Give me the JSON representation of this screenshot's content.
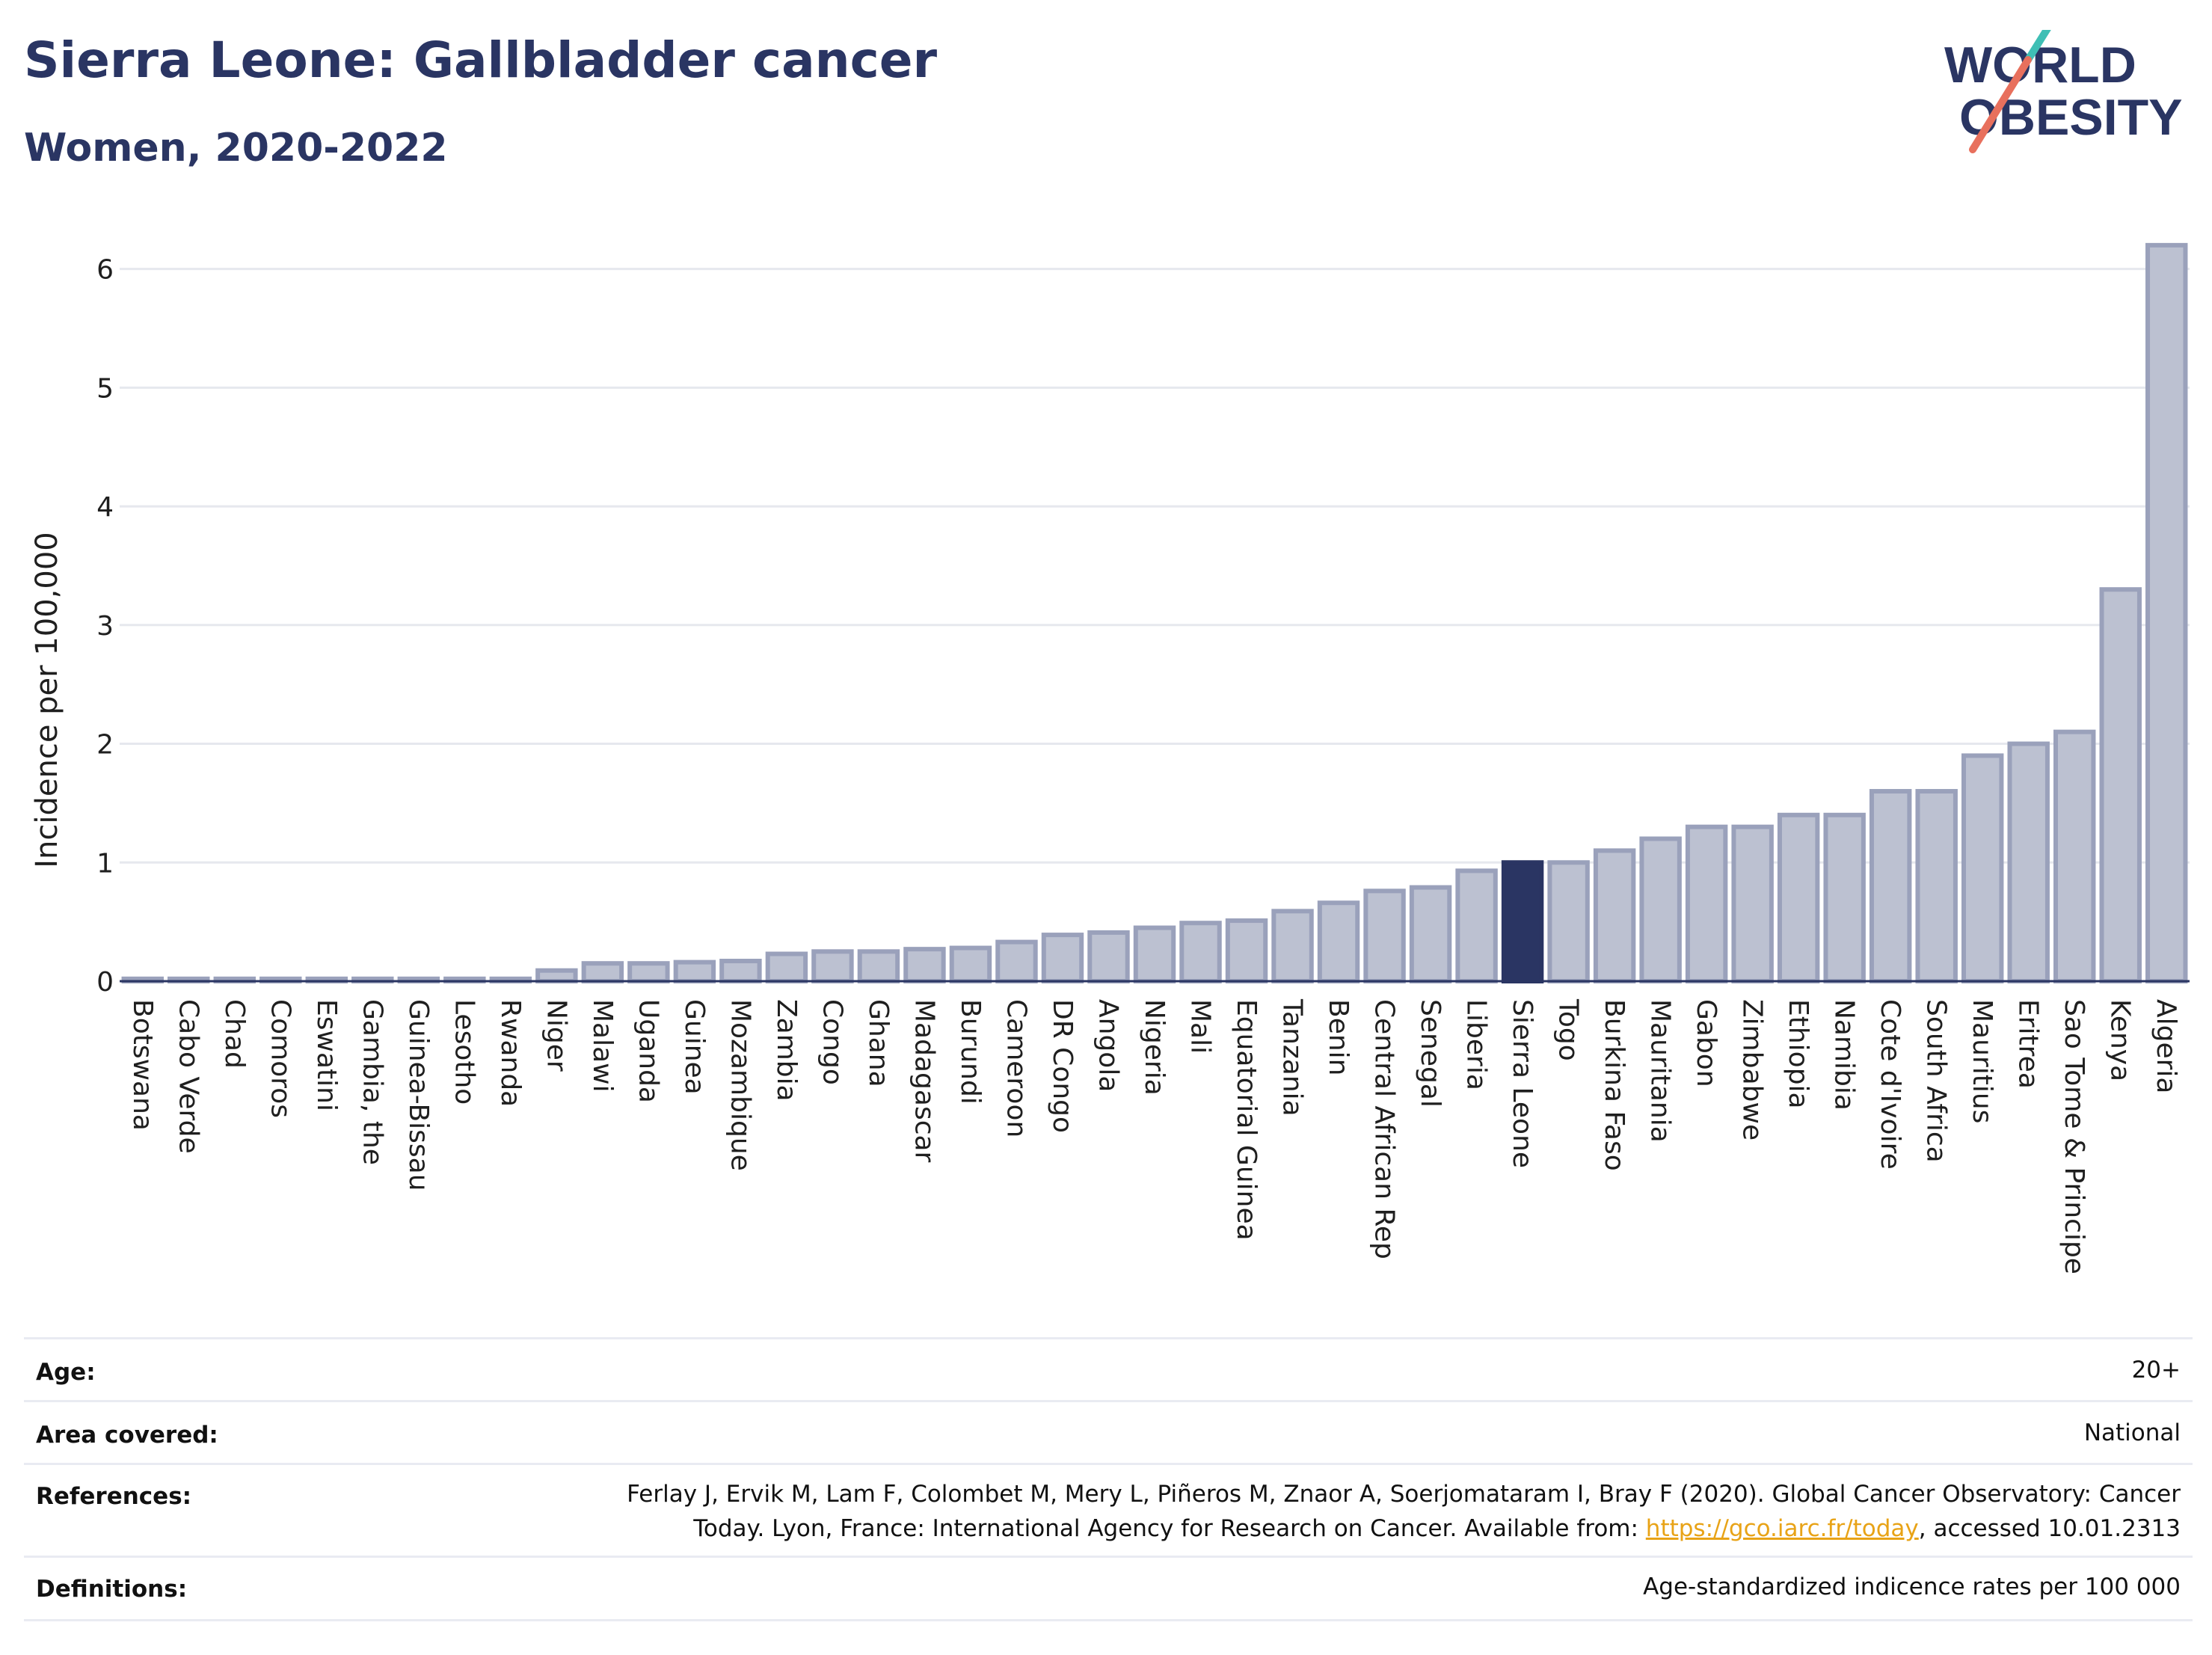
{
  "header": {
    "title": "Sierra Leone: Gallbladder cancer",
    "subtitle": "Women, 2020-2022",
    "logo_line1": "WORLD",
    "logo_line2": "OBESITY"
  },
  "colors": {
    "title": "#2a3563",
    "bar": "#bcc1d1",
    "bar_stroke": "#9aa1bb",
    "highlight": "#2a3563",
    "grid": "#e6e8ee",
    "logo_teal": "#3fbfb5",
    "logo_coral": "#e8705d",
    "link": "#e8a317"
  },
  "chart_data": {
    "type": "bar",
    "ylabel": "Incidence per 100,000",
    "ylim": [
      0,
      6.3
    ],
    "yticks": [
      0,
      1,
      2,
      3,
      4,
      5,
      6
    ],
    "grid": true,
    "highlight": "Sierra Leone",
    "categories": [
      "Botswana",
      "Cabo Verde",
      "Chad",
      "Comoros",
      "Eswatini",
      "Gambia, the",
      "Guinea-Bissau",
      "Lesotho",
      "Rwanda",
      "Niger",
      "Malawi",
      "Uganda",
      "Guinea",
      "Mozambique",
      "Zambia",
      "Congo",
      "Ghana",
      "Madagascar",
      "Burundi",
      "Cameroon",
      "DR Congo",
      "Angola",
      "Nigeria",
      "Mali",
      "Equatorial Guinea",
      "Tanzania",
      "Benin",
      "Central African Rep",
      "Senegal",
      "Liberia",
      "Sierra Leone",
      "Togo",
      "Burkina Faso",
      "Mauritania",
      "Gabon",
      "Zimbabwe",
      "Ethiopia",
      "Namibia",
      "Cote d'Ivoire",
      "South Africa",
      "Mauritius",
      "Eritrea",
      "Sao Tome & Principe",
      "Kenya",
      "Algeria"
    ],
    "values": [
      0.02,
      0.02,
      0.02,
      0.02,
      0.02,
      0.02,
      0.02,
      0.02,
      0.02,
      0.09,
      0.15,
      0.15,
      0.16,
      0.17,
      0.23,
      0.25,
      0.25,
      0.27,
      0.28,
      0.33,
      0.39,
      0.41,
      0.45,
      0.49,
      0.51,
      0.59,
      0.66,
      0.76,
      0.79,
      0.93,
      1.0,
      1.0,
      1.1,
      1.2,
      1.3,
      1.3,
      1.4,
      1.4,
      1.6,
      1.6,
      1.9,
      2.0,
      2.1,
      3.3,
      6.2
    ]
  },
  "meta": {
    "age_label": "Age:",
    "age_value": "20+",
    "area_label": "Area covered:",
    "area_value": "National",
    "references_label": "References:",
    "references_line1": "Ferlay J, Ervik M, Lam F, Colombet M, Mery L, Piñeros M, Znaor A, Soerjomataram I, Bray F (2020). Global Cancer Observatory: Cancer",
    "references_line2_pre": "Today. Lyon, France: International Agency for Research on Cancer. Available from: ",
    "references_link": "https://gco.iarc.fr/today",
    "references_line2_post": ", accessed 10.01.2313",
    "definitions_label": "Definitions:",
    "definitions_value": "Age-standardized indicence rates per 100 000"
  }
}
